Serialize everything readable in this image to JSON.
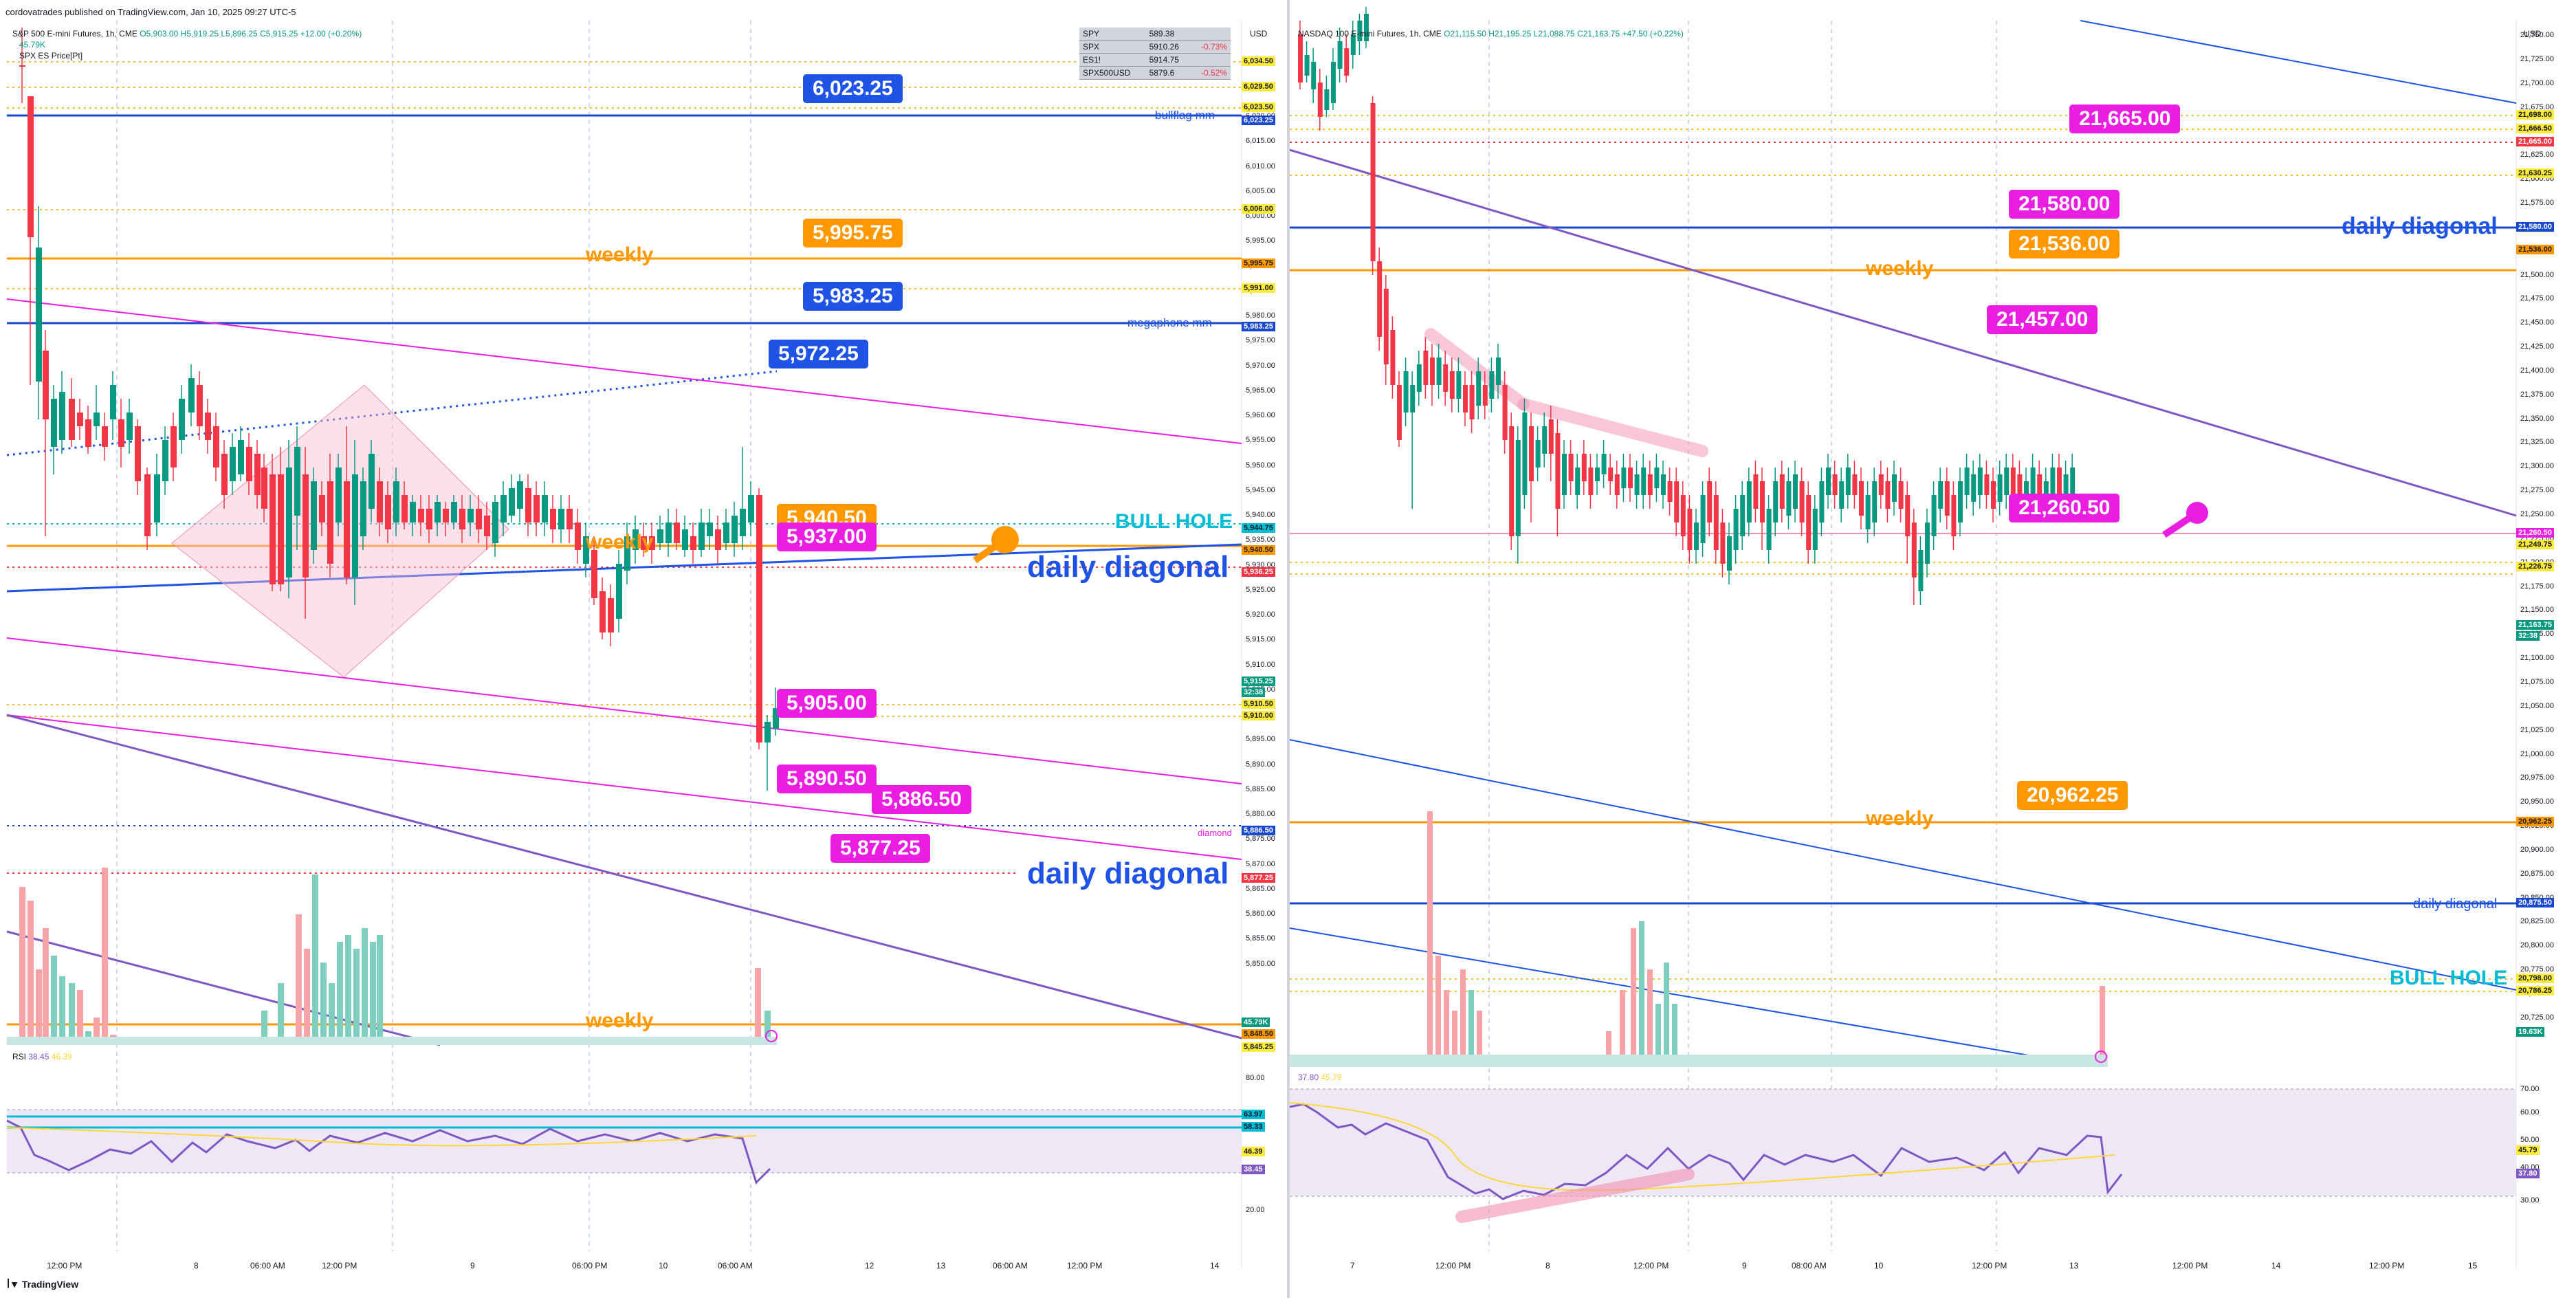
{
  "page": {
    "publisher_line": "cordovatrades published on TradingView.com, Jan 10, 2025 09:27 UTC-5",
    "footer_logo": "TradingView"
  },
  "left": {
    "symbol_line": "S&P 500 E-mini Futures, 1h, CME",
    "ohlc": {
      "open": "O5,903.00",
      "high": "H5,919.25",
      "low": "L5,896.25",
      "close": "C5,915.25",
      "change": "+12.00 (+0.20%)"
    },
    "volume_label": "45.79K",
    "indicator_label": "SPX ES Price[Pt]",
    "currency": "USD",
    "watchlist": [
      {
        "symbol": "SPY",
        "price": "589.38",
        "change": ""
      },
      {
        "symbol": "SPX",
        "price": "5910.26",
        "change": "-0.73%"
      },
      {
        "symbol": "ES1!",
        "price": "5914.75",
        "change": ""
      },
      {
        "symbol": "SPX500USD",
        "price": "5879.6",
        "change": "-0.52%"
      }
    ],
    "price_ticks": [
      "6,020.00",
      "6,015.00",
      "6,010.00",
      "6,005.00",
      "6,000.00",
      "5,995.00",
      "5,990.00",
      "5,985.00",
      "5,980.00",
      "5,975.00",
      "5,970.00",
      "5,965.00",
      "5,960.00",
      "5,955.00",
      "5,950.00",
      "5,945.00",
      "5,940.00",
      "5,935.00",
      "5,930.00",
      "5,925.00",
      "5,920.00",
      "5,915.00",
      "5,910.00",
      "5,905.00",
      "5,900.00",
      "5,895.00",
      "5,890.00",
      "5,885.00",
      "5,880.00",
      "5,875.00",
      "5,870.00",
      "5,865.00",
      "5,860.00",
      "5,855.00",
      "5,850.00"
    ],
    "axis_badges": [
      {
        "text": "6,034.50",
        "color": "#ffeb3b"
      },
      {
        "text": "6,029.50",
        "color": "#ffeb3b"
      },
      {
        "text": "6,023.50",
        "color": "#ffeb3b"
      },
      {
        "text": "6,023.25",
        "color": "#1848cc"
      },
      {
        "text": "6,006.00",
        "color": "#ffeb3b"
      },
      {
        "text": "5,995.75",
        "color": "#ff9800"
      },
      {
        "text": "5,991.00",
        "color": "#ffeb3b"
      },
      {
        "text": "5,983.25",
        "color": "#1848cc"
      },
      {
        "text": "5,944.75",
        "color": "#00bcd4"
      },
      {
        "text": "5,940.50",
        "color": "#ff9800"
      },
      {
        "text": "5,936.25",
        "color": "#f23645"
      },
      {
        "text": "5,915.25",
        "color": "#089981"
      },
      {
        "text": "32:38",
        "color": "#089981"
      },
      {
        "text": "5,910.50",
        "color": "#ffeb3b"
      },
      {
        "text": "5,910.00",
        "color": "#ffeb3b"
      },
      {
        "text": "5,886.50",
        "color": "#1848cc"
      },
      {
        "text": "5,877.25",
        "color": "#f23645"
      },
      {
        "text": "45.79K",
        "color": "#089981"
      },
      {
        "text": "5,848.50",
        "color": "#ff9800"
      },
      {
        "text": "5,845.25",
        "color": "#ffeb3b"
      }
    ],
    "callouts": [
      {
        "text": "6,023.25",
        "color": "#1e53e5"
      },
      {
        "text": "5,995.75",
        "color": "#ff9800"
      },
      {
        "text": "5,983.25",
        "color": "#1e53e5"
      },
      {
        "text": "5,972.25",
        "color": "#1e53e5"
      },
      {
        "text": "5,940.50",
        "color": "#ff9800"
      },
      {
        "text": "5,937.00",
        "color": "#e91ee0"
      },
      {
        "text": "5,905.00",
        "color": "#e91ee0"
      },
      {
        "text": "5,890.50",
        "color": "#e91ee0"
      },
      {
        "text": "5,886.50",
        "color": "#e91ee0"
      },
      {
        "text": "5,877.25",
        "color": "#e91ee0"
      }
    ],
    "line_labels": {
      "bullflag": "bullflag mm",
      "weekly": "weekly",
      "megaphone": "megaphone mm",
      "bull_hole": "BULL HOLE",
      "daily_diagonal": "daily diagonal",
      "diamond": "diamond"
    },
    "rsi_label": "RSI",
    "rsi_values": [
      "38.45",
      "46.39"
    ],
    "rsi_axis": [
      "80.00",
      "20.00"
    ],
    "rsi_badges": [
      {
        "text": "63.97",
        "color": "#00bcd4"
      },
      {
        "text": "58.33",
        "color": "#00bcd4"
      },
      {
        "text": "46.39",
        "color": "#ffeb3b"
      },
      {
        "text": "38.45",
        "color": "#7e57c2"
      }
    ],
    "time_labels": [
      "12:00 PM",
      "8",
      "06:00 AM",
      "12:00 PM",
      "9",
      "06:00 PM",
      "10",
      "06:00 AM",
      "12",
      "13",
      "06:00 AM",
      "12:00 PM",
      "14"
    ]
  },
  "right": {
    "symbol_line": "NASDAQ 100 E-mini Futures, 1h, CME",
    "ohlc": {
      "open": "O21,115.50",
      "high": "H21,195.25",
      "low": "L21,088.75",
      "close": "C21,163.75",
      "change": "+47.50 (+0.22%)"
    },
    "currency": "USD",
    "price_ticks": [
      "21,750.00",
      "21,725.00",
      "21,700.00",
      "21,675.00",
      "21,650.00",
      "21,625.00",
      "21,600.00",
      "21,575.00",
      "21,550.00",
      "21,525.00",
      "21,500.00",
      "21,475.00",
      "21,450.00",
      "21,425.00",
      "21,400.00",
      "21,375.00",
      "21,350.00",
      "21,325.00",
      "21,300.00",
      "21,275.00",
      "21,250.00",
      "21,225.00",
      "21,200.00",
      "21,175.00",
      "21,150.00",
      "21,125.00",
      "21,100.00",
      "21,075.00",
      "21,050.00",
      "21,025.00",
      "21,000.00",
      "20,975.00",
      "20,950.00",
      "20,925.00",
      "20,900.00",
      "20,875.00",
      "20,850.00",
      "20,825.00",
      "20,800.00",
      "20,775.00",
      "20,750.00",
      "20,725.00"
    ],
    "axis_badges": [
      {
        "text": "21,698.00",
        "color": "#ffeb3b"
      },
      {
        "text": "21,666.50",
        "color": "#ffeb3b"
      },
      {
        "text": "21,665.00",
        "color": "#f23645"
      },
      {
        "text": "21,630.25",
        "color": "#ffeb3b"
      },
      {
        "text": "21,580.00",
        "color": "#1848cc"
      },
      {
        "text": "21,536.00",
        "color": "#ff9800"
      },
      {
        "text": "21,260.50",
        "color": "#e91ee0"
      },
      {
        "text": "21,249.75",
        "color": "#ffeb3b"
      },
      {
        "text": "21,226.75",
        "color": "#ffeb3b"
      },
      {
        "text": "21,163.75",
        "color": "#089981"
      },
      {
        "text": "32:38",
        "color": "#089981"
      },
      {
        "text": "20,962.25",
        "color": "#ff9800"
      },
      {
        "text": "20,875.50",
        "color": "#1848cc"
      },
      {
        "text": "20,798.00",
        "color": "#ffeb3b"
      },
      {
        "text": "20,786.25",
        "color": "#ffeb3b"
      },
      {
        "text": "19.63K",
        "color": "#089981"
      }
    ],
    "callouts": [
      {
        "text": "21,665.00",
        "color": "#e91ee0"
      },
      {
        "text": "21,580.00",
        "color": "#e91ee0"
      },
      {
        "text": "21,536.00",
        "color": "#ff9800"
      },
      {
        "text": "21,457.00",
        "color": "#e91ee0"
      },
      {
        "text": "21,260.50",
        "color": "#e91ee0"
      },
      {
        "text": "20,962.25",
        "color": "#ff9800"
      }
    ],
    "line_labels": {
      "daily_diagonal": "daily diagonal",
      "weekly": "weekly",
      "bull_hole": "BULL HOLE"
    },
    "rsi_values": [
      "37.80",
      "45.79"
    ],
    "rsi_axis": [
      "70.00",
      "60.00",
      "50.00",
      "40.00",
      "30.00"
    ],
    "rsi_badges": [
      {
        "text": "45.79",
        "color": "#ffeb3b"
      },
      {
        "text": "37.80",
        "color": "#7e57c2"
      }
    ],
    "time_labels": [
      "7",
      "12:00 PM",
      "8",
      "12:00 PM",
      "9",
      "08:00 AM",
      "10",
      "12:00 PM",
      "13",
      "12:00 PM",
      "14",
      "12:00 PM",
      "15"
    ]
  }
}
